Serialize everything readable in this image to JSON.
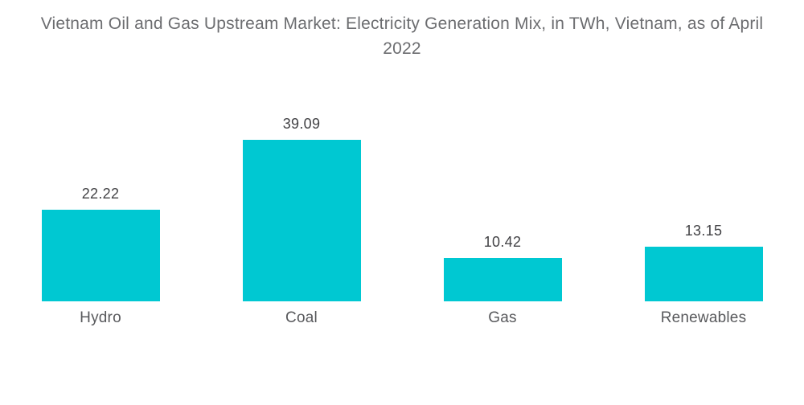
{
  "title": "Vietnam Oil and Gas Upstream Market: Electricity Generation Mix, in TWh, Vietnam, as of April 2022",
  "chart_data": {
    "type": "bar",
    "title": "Vietnam Oil and Gas Upstream Market: Electricity Generation Mix, in TWh, Vietnam, as of April 2022",
    "categories": [
      "Hydro",
      "Coal",
      "Gas",
      "Renewables"
    ],
    "values": [
      22.22,
      39.09,
      10.42,
      13.15
    ],
    "value_labels": [
      "22.22",
      "39.09",
      "10.42",
      "13.15"
    ],
    "unit": "TWh",
    "xlabel": "",
    "ylabel": "",
    "ylim": [
      0,
      40
    ],
    "grid": false,
    "axes_visible": false,
    "legend_position": "none",
    "bar_color": "#00C8D2"
  },
  "colors": {
    "background": "#FFFFFF",
    "bar": "#00C8D2",
    "title_text": "#6C6D70",
    "value_text": "#424245",
    "category_text": "#58595C"
  }
}
